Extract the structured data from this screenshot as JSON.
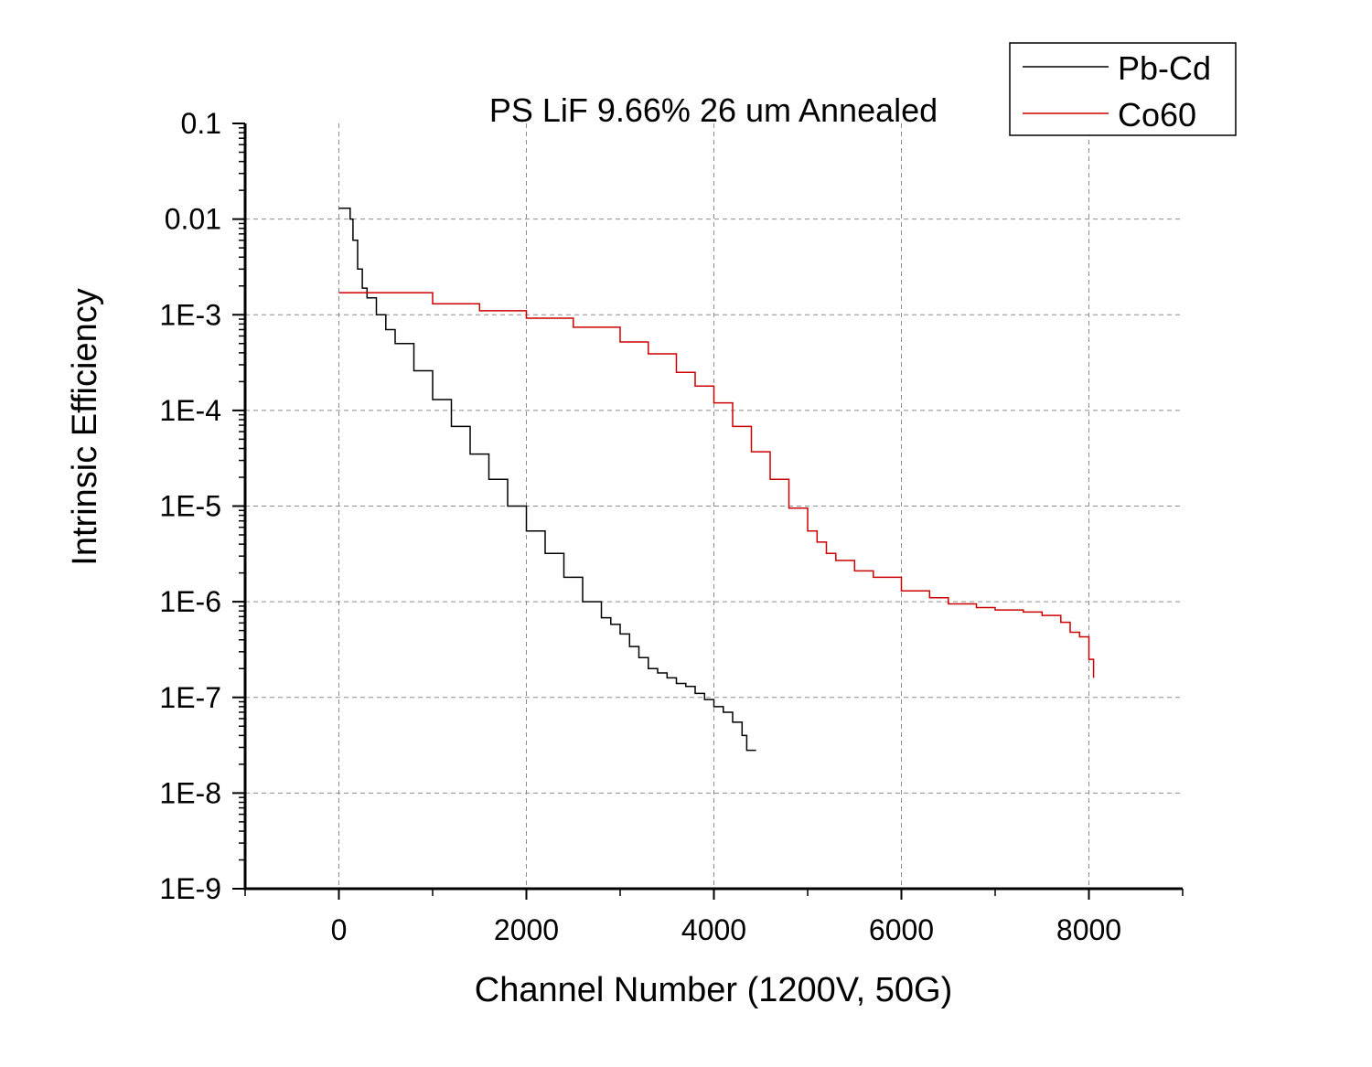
{
  "chart_data": {
    "type": "line",
    "title": "PS LiF 9.66% 26 um Annealed",
    "xlabel": "Channel Number (1200V, 50G)",
    "ylabel": "Intrinsic Efficiency",
    "xlim": [
      -1000,
      9000
    ],
    "ylim": [
      1e-09,
      0.1
    ],
    "yscale": "log",
    "grid": true,
    "legend_position": "top-right",
    "x_ticks": [
      0,
      2000,
      4000,
      6000,
      8000
    ],
    "x_tick_labels": [
      "0",
      "2000",
      "4000",
      "6000",
      "8000"
    ],
    "y_ticks": [
      0.1,
      0.01,
      0.001,
      0.0001,
      1e-05,
      1e-06,
      1e-07,
      1e-08,
      1e-09
    ],
    "y_tick_labels": [
      "0.1",
      "0.01",
      "1E-3",
      "1E-4",
      "1E-5",
      "1E-6",
      "1E-7",
      "1E-8",
      "1E-9"
    ],
    "series": [
      {
        "name": "Pb-Cd",
        "color": "#000000",
        "step": true,
        "x": [
          0,
          100,
          120,
          150,
          200,
          250,
          300,
          400,
          500,
          600,
          800,
          1000,
          1200,
          1400,
          1600,
          1800,
          2000,
          2200,
          2400,
          2600,
          2800,
          2900,
          3000,
          3100,
          3200,
          3300,
          3400,
          3500,
          3600,
          3700,
          3800,
          3900,
          4000,
          4100,
          4200,
          4300,
          4350,
          4450
        ],
        "y": [
          0.013,
          0.013,
          0.01,
          0.006,
          0.003,
          0.0019,
          0.0015,
          0.001,
          0.0007,
          0.0005,
          0.00026,
          0.00013,
          6.8e-05,
          3.5e-05,
          1.9e-05,
          1e-05,
          5.5e-06,
          3.2e-06,
          1.8e-06,
          1e-06,
          6.8e-07,
          5.8e-07,
          4.6e-07,
          3.4e-07,
          2.6e-07,
          2e-07,
          1.8e-07,
          1.6e-07,
          1.4e-07,
          1.3e-07,
          1.1e-07,
          9.5e-08,
          8e-08,
          7e-08,
          5.5e-08,
          4e-08,
          2.8e-08,
          2.8e-08
        ]
      },
      {
        "name": "Co60",
        "color": "#cc0000",
        "step": true,
        "x": [
          0,
          300,
          650,
          1000,
          1500,
          2000,
          2500,
          3000,
          3300,
          3600,
          3800,
          4000,
          4200,
          4400,
          4600,
          4800,
          5000,
          5100,
          5200,
          5300,
          5500,
          5700,
          6000,
          6300,
          6500,
          6800,
          7000,
          7300,
          7500,
          7700,
          7800,
          7900,
          8000,
          8050
        ],
        "y": [
          0.0017,
          0.0017,
          0.0017,
          0.0013,
          0.0011,
          0.00092,
          0.00074,
          0.00052,
          0.00039,
          0.00025,
          0.00018,
          0.00012,
          6.8e-05,
          3.7e-05,
          1.9e-05,
          9.5e-06,
          5.5e-06,
          4.2e-06,
          3.2e-06,
          2.7e-06,
          2.1e-06,
          1.8e-06,
          1.3e-06,
          1.1e-06,
          9.5e-07,
          8.7e-07,
          8.2e-07,
          7.8e-07,
          7.2e-07,
          6.1e-07,
          4.8e-07,
          4.3e-07,
          2.5e-07,
          1.6e-07
        ]
      }
    ]
  }
}
